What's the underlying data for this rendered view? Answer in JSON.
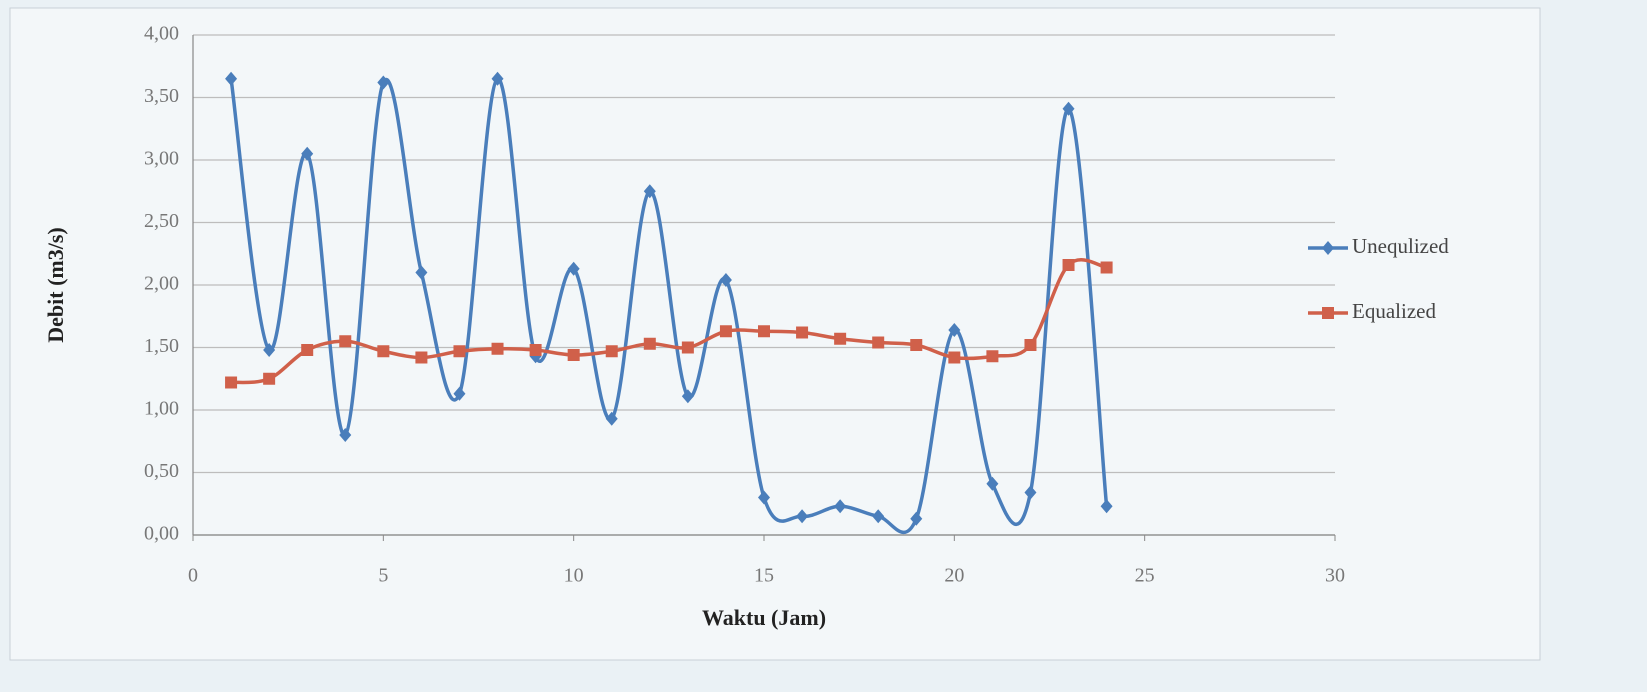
{
  "chart_data": {
    "type": "line",
    "x_label": "Waktu (Jam)",
    "y_label": "Debit (m3/s)",
    "x": [
      1,
      2,
      3,
      4,
      5,
      6,
      7,
      8,
      9,
      10,
      11,
      12,
      13,
      14,
      15,
      16,
      17,
      18,
      19,
      20,
      21,
      22,
      23,
      24
    ],
    "series": [
      {
        "name": "Unequlized",
        "color": "#4a7ebb",
        "marker": "diamond",
        "values": [
          3.65,
          1.48,
          3.05,
          0.8,
          3.62,
          2.1,
          1.13,
          3.65,
          1.43,
          2.13,
          0.93,
          2.75,
          1.11,
          2.04,
          0.3,
          0.15,
          0.23,
          0.15,
          0.13,
          1.64,
          0.41,
          0.34,
          3.41,
          0.23
        ]
      },
      {
        "name": "Equalized",
        "color": "#d0604a",
        "marker": "square",
        "values": [
          1.22,
          1.25,
          1.48,
          1.55,
          1.47,
          1.42,
          1.47,
          1.49,
          1.48,
          1.44,
          1.47,
          1.53,
          1.5,
          1.63,
          1.63,
          1.62,
          1.57,
          1.54,
          1.52,
          1.42,
          1.43,
          1.52,
          2.16,
          2.14
        ]
      }
    ],
    "xlim": [
      0,
      30
    ],
    "xticks": [
      0,
      5,
      10,
      15,
      20,
      25,
      30
    ],
    "ylim": [
      0,
      4
    ],
    "yticks": [
      {
        "value": 0,
        "label": "0,00"
      },
      {
        "value": 0.5,
        "label": "0,50"
      },
      {
        "value": 1,
        "label": "1,00"
      },
      {
        "value": 1.5,
        "label": "1,50"
      },
      {
        "value": 2,
        "label": "2,00"
      },
      {
        "value": 2.5,
        "label": "2,50"
      },
      {
        "value": 3,
        "label": "3,00"
      },
      {
        "value": 3.5,
        "label": "3,50"
      },
      {
        "value": 4,
        "label": "4,00"
      }
    ],
    "grid": true,
    "smooth": true,
    "legend": "right"
  }
}
